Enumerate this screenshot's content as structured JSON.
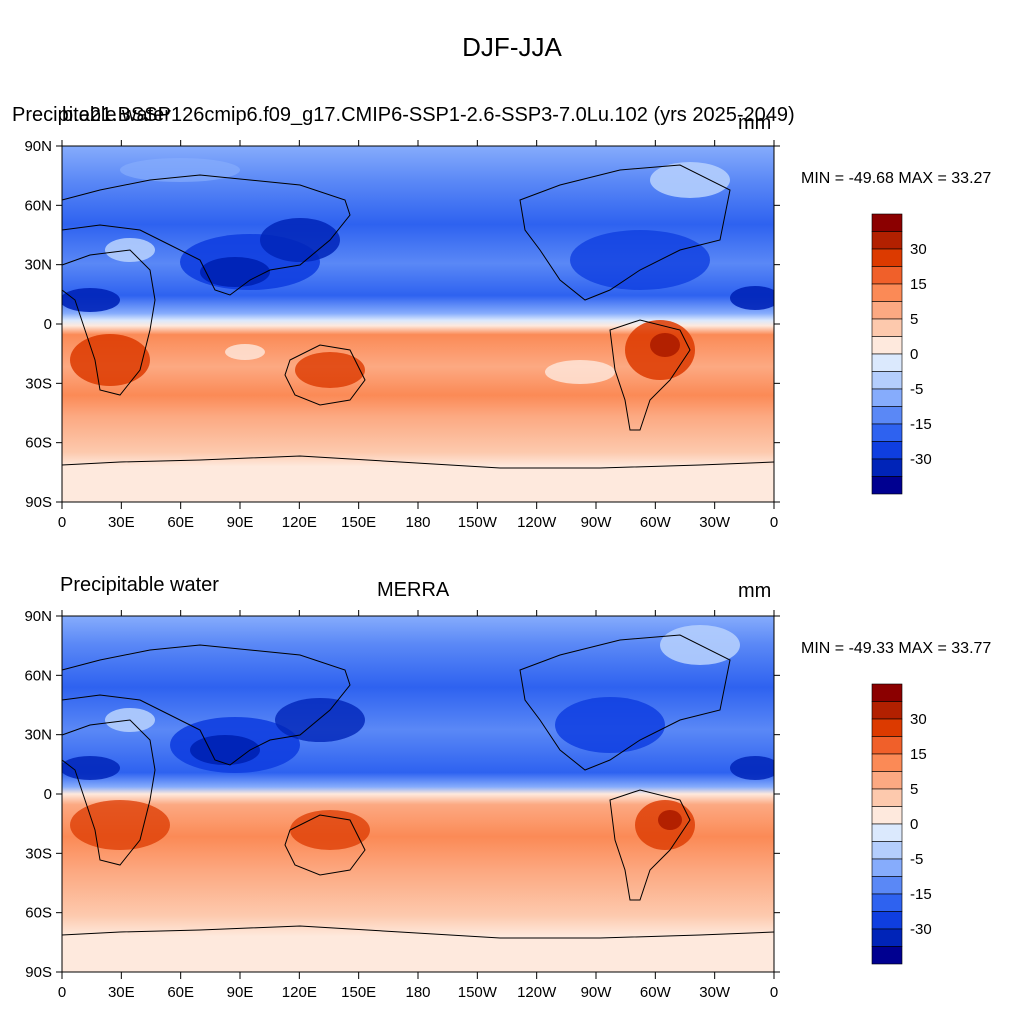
{
  "main_title": "DJF-JJA",
  "panels": [
    {
      "left_title": "Precipitable water",
      "center_title": "b.e21.BSSP126cmip6.f09_g17.CMIP6-SSP1-2.6-SSP3-7.0Lu.102 (yrs 2025-2049)",
      "units": "mm",
      "min_max": "MIN = -49.68 MAX =  33.27"
    },
    {
      "left_title": "Precipitable water",
      "center_title": "MERRA",
      "units": "mm",
      "min_max": "MIN = -49.33 MAX =  33.77"
    }
  ],
  "lat_ticks": [
    "90N",
    "60N",
    "30N",
    "0",
    "30S",
    "60S",
    "90S"
  ],
  "lon_ticks": [
    "0",
    "30E",
    "60E",
    "90E",
    "120E",
    "150E",
    "180",
    "150W",
    "120W",
    "90W",
    "60W",
    "30W",
    "0"
  ],
  "colorbar": {
    "labels": [
      "30",
      "15",
      "5",
      "0",
      "-5",
      "-15",
      "-30"
    ],
    "colors": [
      "#8b0000",
      "#b22000",
      "#dc3a00",
      "#f0602a",
      "#fb8a56",
      "#fca982",
      "#fdc9ad",
      "#fee9dd",
      "#dbe9fd",
      "#b4cefd",
      "#86acfc",
      "#5a88f6",
      "#2e62f0",
      "#0f3ee0",
      "#0024b8",
      "#000090"
    ]
  }
}
